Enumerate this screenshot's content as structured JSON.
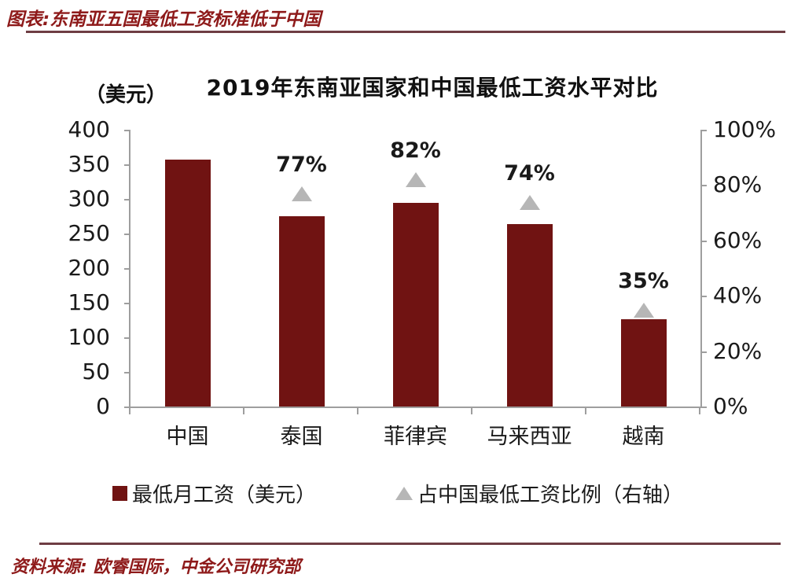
{
  "page": {
    "header_title": "图表:东南亚五国最低工资标准低于中国",
    "source_note": "资料来源: 欧睿国际，中金公司研究部",
    "accent_text_color": "#8e1a1a",
    "rule_color": "#6e3d43"
  },
  "chart_data": {
    "type": "bar",
    "title": "2019年东南亚国家和中国最低工资水平对比",
    "left_axis_unit_label": "（美元）",
    "categories": [
      "中国",
      "泰国",
      "菲律宾",
      "马来西亚",
      "越南"
    ],
    "series": [
      {
        "name": "最低月工资（美元）",
        "type": "bar",
        "axis": "left",
        "color": "#701312",
        "values": [
          357,
          275,
          294,
          264,
          126
        ]
      },
      {
        "name": "占中国最低工资比例（右轴）",
        "type": "triangle-marker",
        "axis": "right",
        "color": "#b6b6b6",
        "values": [
          null,
          77,
          82,
          74,
          35
        ],
        "point_labels": [
          "",
          "77%",
          "82%",
          "74%",
          "35%"
        ]
      }
    ],
    "left_axis": {
      "min": 0,
      "max": 400,
      "step": 50
    },
    "right_axis": {
      "min": 0,
      "max": 100,
      "step": 20,
      "suffix": "%"
    },
    "grid": false,
    "legend_position": "bottom",
    "legend": [
      {
        "marker": "square",
        "color": "#701312",
        "label": "最低月工资（美元）"
      },
      {
        "marker": "triangle",
        "color": "#b6b6b6",
        "label": "占中国最低工资比例（右轴）"
      }
    ]
  }
}
